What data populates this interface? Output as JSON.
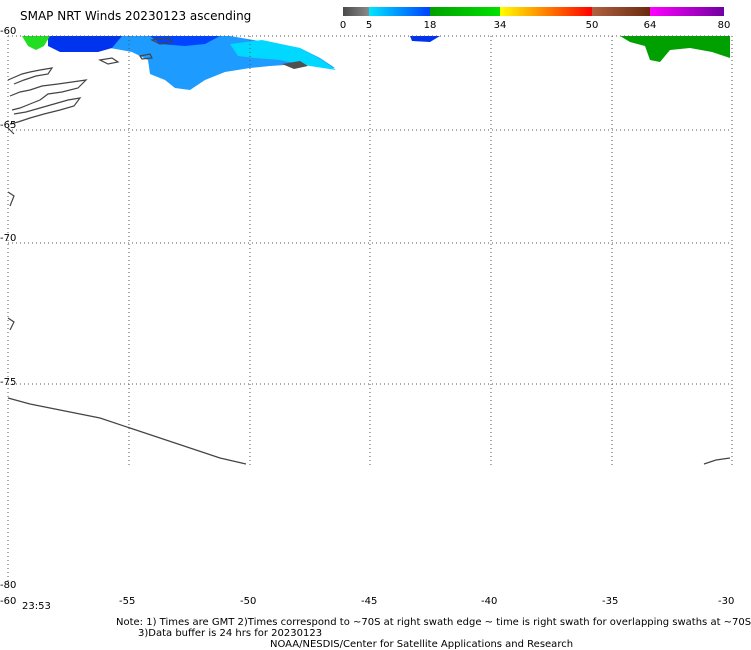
{
  "title": "SMAP NRT Winds 20230123 ascending",
  "colorbar": {
    "segments": [
      {
        "from": 0,
        "to": 5,
        "colors": [
          "#4a4a4a",
          "#8a8a8a"
        ]
      },
      {
        "from": 5,
        "to": 18,
        "colors": [
          "#00e5ff",
          "#0040ff"
        ]
      },
      {
        "from": 18,
        "to": 34,
        "colors": [
          "#00a000",
          "#00e000"
        ]
      },
      {
        "from": 34,
        "to": 50,
        "colors": [
          "#ffff00",
          "#ff8000",
          "#ff0000"
        ]
      },
      {
        "from": 50,
        "to": 64,
        "colors": [
          "#b06040",
          "#6a2a10"
        ]
      },
      {
        "from": 64,
        "to": 80,
        "colors": [
          "#ff00ff",
          "#7000a0"
        ]
      }
    ],
    "tick_labels": [
      "0",
      "5",
      "18",
      "34",
      "50",
      "64",
      "80"
    ]
  },
  "axes": {
    "lon_ticks": [
      "-60",
      "-55",
      "-50",
      "-45",
      "-40",
      "-35",
      "-30"
    ],
    "lat_ticks": [
      "-60",
      "-65",
      "-70",
      "-75",
      "-80"
    ]
  },
  "time_label": "23:53",
  "notes": {
    "line1": "Note: 1) Times are GMT 2)Times correspond to ~70S at right swath edge ~ time is right swath for overlapping swaths at ~70S",
    "line2": "3)Data buffer is 24 hrs for 20230123",
    "line3": "NOAA/NESDIS/Center for Satellite Applications and Research"
  },
  "colors": {
    "grid": "#555555",
    "coast": "#444444",
    "wind_light_blue": "#1e9bff",
    "wind_blue": "#0033ee",
    "wind_cyan": "#00d8ff",
    "wind_green": "#00a000",
    "wind_bright_green": "#22dd22",
    "wind_gray": "#505050"
  }
}
